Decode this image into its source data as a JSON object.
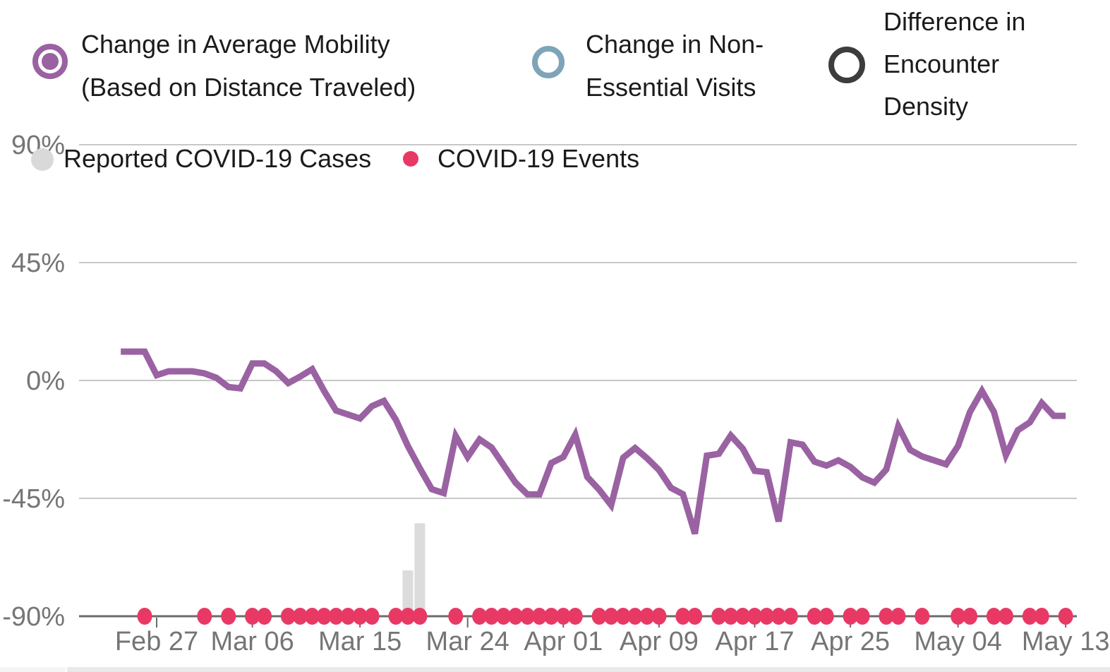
{
  "legend": {
    "series": [
      {
        "line1": "Change in Average Mobility",
        "line2": "(Based on Distance Traveled)",
        "color": "#9A62A2",
        "selected": true
      },
      {
        "line1": "Change in Non-",
        "line2": "Essential Visits",
        "color": "#7EA4B8",
        "selected": false
      },
      {
        "line1": "Difference in",
        "line2": "Encounter",
        "line3": "Density",
        "color": "#3D3D3D",
        "selected": false
      }
    ],
    "markers": [
      {
        "label": "Reported COVID-19 Cases",
        "color": "#D9D9D9"
      },
      {
        "label": "COVID-19 Events",
        "color": "#E83965"
      }
    ]
  },
  "colors": {
    "accent_purple": "#9A62A2",
    "accent_blue": "#7EA4B8",
    "accent_dark": "#3D3D3D",
    "event_pink": "#E83965",
    "cases_gray": "#D9D9D9",
    "bar_fill": "#DCDCDC",
    "axis_text": "#757575",
    "gridline": "#C8C8C8",
    "axis_line": "#6B6B6B"
  },
  "chart_data": {
    "type": "line",
    "title": "",
    "xlabel": "",
    "ylabel": "",
    "ylim": [
      -90,
      90
    ],
    "grid": true,
    "legend_position": "top",
    "y_axis": {
      "tick_labels": [
        "90%",
        "45%",
        "0%",
        "-45%",
        "-90%"
      ],
      "tick_values": [
        90,
        45,
        0,
        -45,
        -90
      ]
    },
    "x_axis": {
      "tick_labels": [
        "Feb 27",
        "Mar 06",
        "Mar 15",
        "Mar 24",
        "Apr 01",
        "Apr 09",
        "Apr 17",
        "Apr 25",
        "May 04",
        "May 13"
      ],
      "tick_days": [
        0,
        8,
        17,
        26,
        34,
        42,
        50,
        58,
        67,
        76
      ],
      "anchor_label": "Feb 27"
    },
    "series": [
      {
        "name": "Change in Average Mobility (Based on Distance Traveled)",
        "color": "#9A62A2",
        "start_day": -3,
        "dates": [
          "Feb 24",
          "Feb 25",
          "Feb 26",
          "Feb 27",
          "Feb 28",
          "Feb 29",
          "Mar 01",
          "Mar 02",
          "Mar 03",
          "Mar 04",
          "Mar 05",
          "Mar 06",
          "Mar 07",
          "Mar 08",
          "Mar 09",
          "Mar 10",
          "Mar 11",
          "Mar 12",
          "Mar 13",
          "Mar 14",
          "Mar 15",
          "Mar 16",
          "Mar 17",
          "Mar 18",
          "Mar 19",
          "Mar 20",
          "Mar 21",
          "Mar 22",
          "Mar 23",
          "Mar 24",
          "Mar 25",
          "Mar 26",
          "Mar 27",
          "Mar 28",
          "Mar 29",
          "Mar 30",
          "Mar 31",
          "Apr 01",
          "Apr 02",
          "Apr 03",
          "Apr 04",
          "Apr 05",
          "Apr 06",
          "Apr 07",
          "Apr 08",
          "Apr 09",
          "Apr 10",
          "Apr 11",
          "Apr 12",
          "Apr 13",
          "Apr 14",
          "Apr 15",
          "Apr 16",
          "Apr 17",
          "Apr 18",
          "Apr 19",
          "Apr 20",
          "Apr 21",
          "Apr 22",
          "Apr 23",
          "Apr 24",
          "Apr 25",
          "Apr 26",
          "Apr 27",
          "Apr 28",
          "Apr 29",
          "Apr 30",
          "May 01",
          "May 02",
          "May 03",
          "May 04",
          "May 05",
          "May 06",
          "May 07",
          "May 08",
          "May 09",
          "May 10",
          "May 11",
          "May 12",
          "May 13"
        ],
        "values": [
          11,
          11,
          11,
          2,
          3.5,
          3.5,
          3.5,
          2.7,
          1,
          -2.5,
          -3,
          6.5,
          6.5,
          3.5,
          -1,
          1.5,
          4.3,
          -4,
          -11.5,
          -13,
          -14.5,
          -9.8,
          -7.8,
          -15,
          -25,
          -33.5,
          -41.5,
          -43,
          -21.2,
          -29.2,
          -22.5,
          -25.6,
          -32.3,
          -39,
          -43.5,
          -43.5,
          -31.5,
          -29.2,
          -20.7,
          -36.8,
          -41.7,
          -47.6,
          -29.5,
          -25.8,
          -29.7,
          -34.2,
          -41,
          -43.4,
          -58.5,
          -28.7,
          -28,
          -21,
          -26,
          -34.5,
          -35,
          -53.8,
          -23.6,
          -24.5,
          -31,
          -32.5,
          -30.5,
          -33,
          -37,
          -39,
          -34,
          -17.5,
          -26.5,
          -29,
          -30.5,
          -32,
          -25,
          -12,
          -4,
          -12,
          -28.5,
          -19,
          -16,
          -8.6,
          -13.5,
          -13.5
        ]
      }
    ],
    "bars": {
      "name": "Reported COVID-19 Cases",
      "color": "#DCDCDC",
      "points": [
        {
          "date": "Mar 19",
          "day": 21,
          "height_axis_pct": 17.5
        },
        {
          "date": "Mar 20",
          "day": 22,
          "height_axis_pct": 35.5
        }
      ]
    },
    "events": {
      "name": "COVID-19 Events",
      "color": "#E83965",
      "baseline_value": -90,
      "points": [
        {
          "date": "Feb 26",
          "day": -1
        },
        {
          "date": "Mar 02",
          "day": 4
        },
        {
          "date": "Mar 04",
          "day": 6
        },
        {
          "date": "Mar 06",
          "day": 8
        },
        {
          "date": "Mar 07",
          "day": 9
        },
        {
          "date": "Mar 09",
          "day": 11
        },
        {
          "date": "Mar 10",
          "day": 12
        },
        {
          "date": "Mar 11",
          "day": 13
        },
        {
          "date": "Mar 12",
          "day": 14
        },
        {
          "date": "Mar 13",
          "day": 15
        },
        {
          "date": "Mar 14",
          "day": 16
        },
        {
          "date": "Mar 15",
          "day": 17
        },
        {
          "date": "Mar 16",
          "day": 18
        },
        {
          "date": "Mar 18",
          "day": 20
        },
        {
          "date": "Mar 19",
          "day": 21
        },
        {
          "date": "Mar 20",
          "day": 22
        },
        {
          "date": "Mar 23",
          "day": 25
        },
        {
          "date": "Mar 25",
          "day": 27
        },
        {
          "date": "Mar 26",
          "day": 28
        },
        {
          "date": "Mar 27",
          "day": 29
        },
        {
          "date": "Mar 28",
          "day": 30
        },
        {
          "date": "Mar 29",
          "day": 31
        },
        {
          "date": "Mar 30",
          "day": 32
        },
        {
          "date": "Mar 31",
          "day": 33
        },
        {
          "date": "Apr 01",
          "day": 34
        },
        {
          "date": "Apr 02",
          "day": 35
        },
        {
          "date": "Apr 04",
          "day": 37
        },
        {
          "date": "Apr 05",
          "day": 38
        },
        {
          "date": "Apr 06",
          "day": 39
        },
        {
          "date": "Apr 07",
          "day": 40
        },
        {
          "date": "Apr 08",
          "day": 41
        },
        {
          "date": "Apr 09",
          "day": 42
        },
        {
          "date": "Apr 11",
          "day": 44
        },
        {
          "date": "Apr 12",
          "day": 45
        },
        {
          "date": "Apr 14",
          "day": 47
        },
        {
          "date": "Apr 15",
          "day": 48
        },
        {
          "date": "Apr 16",
          "day": 49
        },
        {
          "date": "Apr 17",
          "day": 50
        },
        {
          "date": "Apr 18",
          "day": 51
        },
        {
          "date": "Apr 19",
          "day": 52
        },
        {
          "date": "Apr 20",
          "day": 53
        },
        {
          "date": "Apr 22",
          "day": 55
        },
        {
          "date": "Apr 23",
          "day": 56
        },
        {
          "date": "Apr 25",
          "day": 58
        },
        {
          "date": "Apr 26",
          "day": 59
        },
        {
          "date": "Apr 28",
          "day": 61
        },
        {
          "date": "Apr 29",
          "day": 62
        },
        {
          "date": "May 01",
          "day": 64
        },
        {
          "date": "May 04",
          "day": 67
        },
        {
          "date": "May 05",
          "day": 68
        },
        {
          "date": "May 07",
          "day": 70
        },
        {
          "date": "May 08",
          "day": 71
        },
        {
          "date": "May 10",
          "day": 73
        },
        {
          "date": "May 11",
          "day": 74
        },
        {
          "date": "May 13",
          "day": 76
        }
      ]
    }
  }
}
